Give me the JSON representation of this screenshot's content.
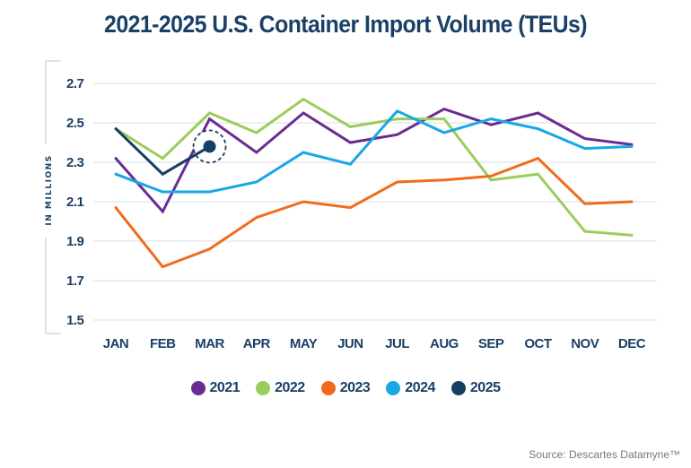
{
  "chart_data": {
    "type": "line",
    "title": "2021-2025 U.S. Container Import Volume (TEUs)",
    "xlabel": "",
    "ylabel": "IN MILLIONS",
    "ylim": [
      1.5,
      2.7
    ],
    "yticks": [
      "2.7",
      "2.5",
      "2.3",
      "2.1",
      "1.9",
      "1.7",
      "1.5"
    ],
    "ytick_values": [
      2.7,
      2.5,
      2.3,
      2.1,
      1.9,
      1.7,
      1.5
    ],
    "grid": true,
    "legend_position": "bottom-center",
    "categories": [
      "JAN",
      "FEB",
      "MAR",
      "APR",
      "MAY",
      "JUN",
      "JUL",
      "AUG",
      "SEP",
      "OCT",
      "NOV",
      "DEC"
    ],
    "series": [
      {
        "name": "2021",
        "color": "#6a2c91",
        "values": [
          2.32,
          2.05,
          2.52,
          2.35,
          2.55,
          2.4,
          2.44,
          2.57,
          2.49,
          2.55,
          2.42,
          2.39
        ]
      },
      {
        "name": "2022",
        "color": "#9acd5a",
        "values": [
          2.47,
          2.32,
          2.55,
          2.45,
          2.62,
          2.48,
          2.52,
          2.52,
          2.21,
          2.24,
          1.95,
          1.93
        ]
      },
      {
        "name": "2023",
        "color": "#f26b1d",
        "values": [
          2.07,
          1.77,
          1.86,
          2.02,
          2.1,
          2.07,
          2.2,
          2.21,
          2.23,
          2.32,
          2.09,
          2.1
        ]
      },
      {
        "name": "2024",
        "color": "#1aa7e6",
        "values": [
          2.24,
          2.15,
          2.15,
          2.2,
          2.35,
          2.29,
          2.56,
          2.45,
          2.52,
          2.47,
          2.37,
          2.38
        ]
      },
      {
        "name": "2025",
        "color": "#173f66",
        "values": [
          2.47,
          2.24,
          2.38
        ],
        "highlight_last": true
      }
    ],
    "source": "Source: Descartes Datamyne™"
  }
}
